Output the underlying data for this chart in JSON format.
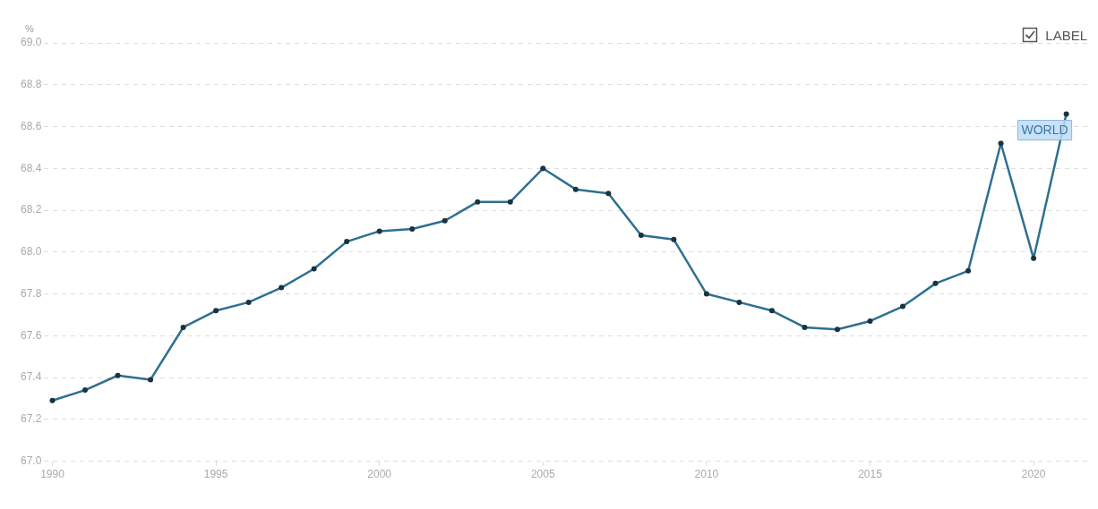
{
  "chart_data": {
    "type": "line",
    "ylabel": "%",
    "annotations": [
      "LABEL"
    ],
    "x": [
      1990,
      1991,
      1992,
      1993,
      1994,
      1995,
      1996,
      1997,
      1998,
      1999,
      2000,
      2001,
      2002,
      2003,
      2004,
      2005,
      2006,
      2007,
      2008,
      2009,
      2010,
      2011,
      2012,
      2013,
      2014,
      2015,
      2016,
      2017,
      2018,
      2019,
      2020,
      2021
    ],
    "series": [
      {
        "name": "WORLD",
        "color": "#2f6f91",
        "values": [
          67.29,
          67.34,
          67.41,
          67.39,
          67.64,
          67.72,
          67.76,
          67.83,
          67.92,
          68.05,
          68.1,
          68.11,
          68.15,
          68.24,
          68.24,
          68.4,
          68.3,
          68.28,
          68.08,
          68.06,
          67.8,
          67.76,
          67.72,
          67.64,
          67.63,
          67.67,
          67.74,
          67.85,
          67.91,
          68.52,
          67.97,
          68.66
        ]
      }
    ],
    "xlim": [
      1989.75,
      2021.75
    ],
    "xticks": [
      1990,
      1995,
      2000,
      2005,
      2010,
      2015,
      2020
    ],
    "ylim": [
      67.0,
      69.0
    ],
    "yticks": [
      {
        "value": 67,
        "label": "67.0"
      },
      67.2,
      67.4,
      67.6,
      67.8,
      {
        "value": 68,
        "label": "68.0"
      },
      68.2,
      68.4,
      68.6,
      68.8,
      {
        "value": 69,
        "label": "69.0"
      }
    ],
    "grid": "y",
    "legend": false,
    "marker": "circle",
    "line_style": "solid"
  }
}
